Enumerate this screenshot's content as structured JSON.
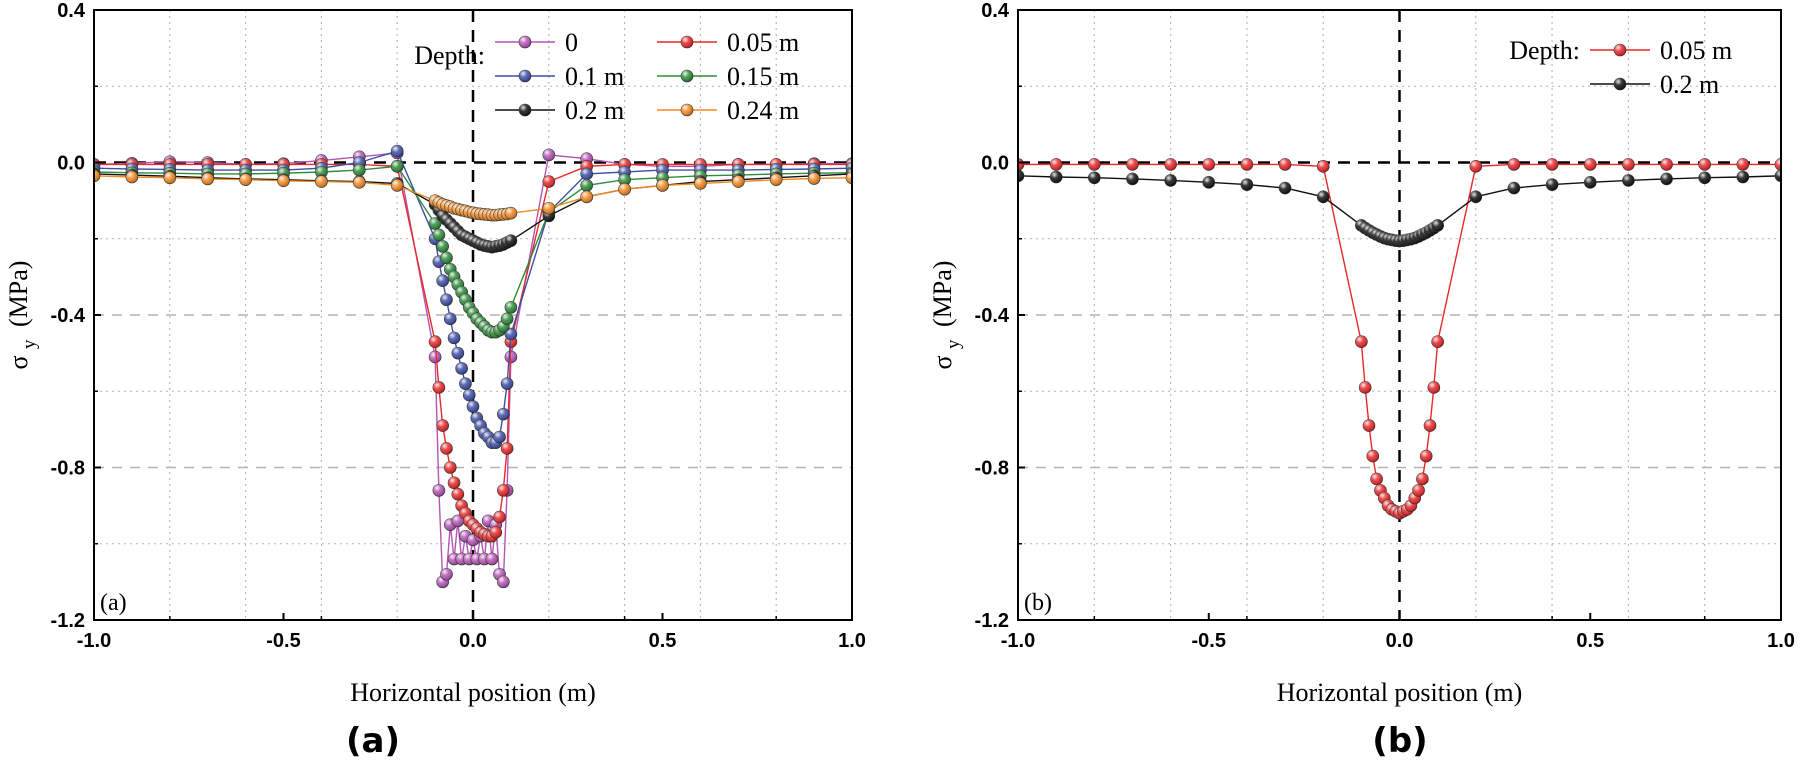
{
  "chart_data": [
    {
      "type": "line",
      "panel_tag": "(a)",
      "caption": "(a)",
      "xlabel": "Horizontal position (m)",
      "ylabel_symbol": "σ",
      "ylabel_sub": "y",
      "ylabel_unit": "(MPa)",
      "xlim": [
        -1.0,
        1.0
      ],
      "ylim": [
        -1.2,
        0.4
      ],
      "xticks": [
        "-1.0",
        "-0.5",
        "0.0",
        "0.5",
        "1.0"
      ],
      "yticks": [
        "0.4",
        "0.0",
        "-0.4",
        "-0.8",
        "-1.2"
      ],
      "grid": true,
      "legend_title": "Depth:",
      "legend_columns": 2,
      "legend_position": "top-right",
      "series": [
        {
          "name": "0",
          "color": "#b455b4",
          "x": [
            -1.0,
            -0.9,
            -0.8,
            -0.7,
            -0.6,
            -0.5,
            -0.4,
            -0.3,
            -0.2,
            -0.1,
            -0.09,
            -0.08,
            -0.07,
            -0.06,
            -0.05,
            -0.04,
            -0.03,
            -0.02,
            -0.01,
            0,
            0.01,
            0.02,
            0.03,
            0.04,
            0.05,
            0.06,
            0.07,
            0.08,
            0.09,
            0.1,
            0.2,
            0.3,
            0.4,
            0.5,
            0.6,
            0.7,
            0.8,
            0.9,
            1.0
          ],
          "y": [
            -0.005,
            -0.002,
            0.002,
            0.0,
            -0.005,
            -0.003,
            0.005,
            0.015,
            0.025,
            -0.51,
            -0.86,
            -1.1,
            -1.08,
            -0.95,
            -1.04,
            -0.94,
            -1.04,
            -0.98,
            -1.04,
            -0.99,
            -1.04,
            -0.98,
            -1.04,
            -0.94,
            -1.04,
            -0.95,
            -1.08,
            -1.1,
            -0.86,
            -0.51,
            0.02,
            0.01,
            -0.005,
            -0.01,
            -0.01,
            -0.005,
            -0.005,
            -0.003,
            -0.003
          ]
        },
        {
          "name": "0.05 m",
          "color": "#e8282a",
          "x": [
            -1.0,
            -0.9,
            -0.8,
            -0.7,
            -0.6,
            -0.5,
            -0.4,
            -0.3,
            -0.2,
            -0.1,
            -0.09,
            -0.08,
            -0.07,
            -0.06,
            -0.05,
            -0.04,
            -0.03,
            -0.02,
            -0.01,
            0,
            0.01,
            0.02,
            0.03,
            0.04,
            0.05,
            0.06,
            0.07,
            0.08,
            0.09,
            0.1,
            0.2,
            0.3,
            0.4,
            0.5,
            0.6,
            0.7,
            0.8,
            0.9,
            1.0
          ],
          "y": [
            -0.005,
            -0.005,
            -0.005,
            -0.005,
            -0.005,
            -0.005,
            -0.005,
            -0.005,
            -0.01,
            -0.47,
            -0.59,
            -0.69,
            -0.75,
            -0.8,
            -0.84,
            -0.87,
            -0.9,
            -0.92,
            -0.94,
            -0.95,
            -0.96,
            -0.97,
            -0.975,
            -0.98,
            -0.98,
            -0.97,
            -0.93,
            -0.86,
            -0.75,
            -0.47,
            -0.05,
            -0.01,
            -0.005,
            -0.005,
            -0.005,
            -0.005,
            -0.005,
            -0.005,
            -0.005
          ]
        },
        {
          "name": "0.1 m",
          "color": "#3e4fa6",
          "x": [
            -1.0,
            -0.9,
            -0.8,
            -0.7,
            -0.6,
            -0.5,
            -0.4,
            -0.3,
            -0.2,
            -0.1,
            -0.09,
            -0.08,
            -0.07,
            -0.06,
            -0.05,
            -0.04,
            -0.03,
            -0.02,
            -0.01,
            0,
            0.01,
            0.02,
            0.03,
            0.04,
            0.05,
            0.06,
            0.07,
            0.08,
            0.09,
            0.1,
            0.2,
            0.3,
            0.4,
            0.5,
            0.6,
            0.7,
            0.8,
            0.9,
            1.0
          ],
          "y": [
            -0.015,
            -0.017,
            -0.018,
            -0.02,
            -0.02,
            -0.02,
            -0.015,
            0.0,
            0.03,
            -0.2,
            -0.26,
            -0.31,
            -0.36,
            -0.41,
            -0.46,
            -0.5,
            -0.54,
            -0.58,
            -0.61,
            -0.64,
            -0.67,
            -0.69,
            -0.71,
            -0.72,
            -0.735,
            -0.735,
            -0.72,
            -0.66,
            -0.58,
            -0.45,
            -0.13,
            -0.03,
            -0.025,
            -0.02,
            -0.02,
            -0.02,
            -0.018,
            -0.017,
            -0.015
          ]
        },
        {
          "name": "0.15 m",
          "color": "#2e8b3a",
          "x": [
            -1.0,
            -0.9,
            -0.8,
            -0.7,
            -0.6,
            -0.5,
            -0.4,
            -0.3,
            -0.2,
            -0.1,
            -0.09,
            -0.08,
            -0.07,
            -0.06,
            -0.05,
            -0.04,
            -0.03,
            -0.02,
            -0.01,
            0,
            0.01,
            0.02,
            0.03,
            0.04,
            0.05,
            0.06,
            0.07,
            0.08,
            0.09,
            0.1,
            0.2,
            0.3,
            0.4,
            0.5,
            0.6,
            0.7,
            0.8,
            0.9,
            1.0
          ],
          "y": [
            -0.025,
            -0.027,
            -0.028,
            -0.03,
            -0.03,
            -0.028,
            -0.025,
            -0.02,
            -0.01,
            -0.16,
            -0.19,
            -0.22,
            -0.25,
            -0.28,
            -0.3,
            -0.32,
            -0.34,
            -0.36,
            -0.38,
            -0.395,
            -0.41,
            -0.42,
            -0.43,
            -0.44,
            -0.445,
            -0.445,
            -0.44,
            -0.43,
            -0.41,
            -0.38,
            -0.13,
            -0.06,
            -0.045,
            -0.04,
            -0.035,
            -0.033,
            -0.03,
            -0.028,
            -0.027
          ]
        },
        {
          "name": "0.2 m",
          "color": "#111111",
          "x": [
            -1.0,
            -0.9,
            -0.8,
            -0.7,
            -0.6,
            -0.5,
            -0.4,
            -0.3,
            -0.2,
            -0.1,
            -0.09,
            -0.08,
            -0.07,
            -0.06,
            -0.05,
            -0.04,
            -0.03,
            -0.02,
            -0.01,
            0,
            0.01,
            0.02,
            0.03,
            0.04,
            0.05,
            0.06,
            0.07,
            0.08,
            0.09,
            0.1,
            0.2,
            0.3,
            0.4,
            0.5,
            0.6,
            0.7,
            0.8,
            0.9,
            1.0
          ],
          "y": [
            -0.03,
            -0.033,
            -0.036,
            -0.04,
            -0.043,
            -0.045,
            -0.048,
            -0.05,
            -0.055,
            -0.11,
            -0.125,
            -0.14,
            -0.15,
            -0.16,
            -0.17,
            -0.18,
            -0.19,
            -0.195,
            -0.2,
            -0.205,
            -0.21,
            -0.215,
            -0.218,
            -0.22,
            -0.222,
            -0.22,
            -0.218,
            -0.215,
            -0.21,
            -0.205,
            -0.14,
            -0.09,
            -0.07,
            -0.06,
            -0.05,
            -0.045,
            -0.04,
            -0.035,
            -0.03
          ]
        },
        {
          "name": "0.24 m",
          "color": "#f08a24",
          "x": [
            -1.0,
            -0.9,
            -0.8,
            -0.7,
            -0.6,
            -0.5,
            -0.4,
            -0.3,
            -0.2,
            -0.1,
            -0.09,
            -0.08,
            -0.07,
            -0.06,
            -0.05,
            -0.04,
            -0.03,
            -0.02,
            -0.01,
            0,
            0.01,
            0.02,
            0.03,
            0.04,
            0.05,
            0.06,
            0.07,
            0.08,
            0.09,
            0.1,
            0.2,
            0.3,
            0.4,
            0.5,
            0.6,
            0.7,
            0.8,
            0.9,
            1.0
          ],
          "y": [
            -0.035,
            -0.038,
            -0.04,
            -0.043,
            -0.045,
            -0.048,
            -0.05,
            -0.052,
            -0.06,
            -0.1,
            -0.105,
            -0.11,
            -0.113,
            -0.116,
            -0.12,
            -0.122,
            -0.125,
            -0.127,
            -0.13,
            -0.132,
            -0.134,
            -0.135,
            -0.136,
            -0.137,
            -0.138,
            -0.138,
            -0.137,
            -0.136,
            -0.135,
            -0.133,
            -0.12,
            -0.09,
            -0.07,
            -0.06,
            -0.055,
            -0.05,
            -0.045,
            -0.042,
            -0.04
          ]
        }
      ]
    },
    {
      "type": "line",
      "panel_tag": "(b)",
      "caption": "(b)",
      "xlabel": "Horizontal position (m)",
      "ylabel_symbol": "σ",
      "ylabel_sub": "y",
      "ylabel_unit": "(MPa)",
      "xlim": [
        -1.0,
        1.0
      ],
      "ylim": [
        -1.2,
        0.4
      ],
      "xticks": [
        "-1.0",
        "-0.5",
        "0.0",
        "0.5",
        "1.0"
      ],
      "yticks": [
        "0.4",
        "0.0",
        "-0.4",
        "-0.8",
        "-1.2"
      ],
      "grid": true,
      "legend_title": "Depth:",
      "legend_columns": 1,
      "legend_position": "top-right",
      "series": [
        {
          "name": "0.05 m",
          "color": "#e8282a",
          "x": [
            -1.0,
            -0.9,
            -0.8,
            -0.7,
            -0.6,
            -0.5,
            -0.4,
            -0.3,
            -0.2,
            -0.1,
            -0.09,
            -0.08,
            -0.07,
            -0.06,
            -0.05,
            -0.04,
            -0.03,
            -0.02,
            -0.01,
            0,
            0.01,
            0.02,
            0.03,
            0.04,
            0.05,
            0.06,
            0.07,
            0.08,
            0.09,
            0.1,
            0.2,
            0.3,
            0.4,
            0.5,
            0.6,
            0.7,
            0.8,
            0.9,
            1.0
          ],
          "y": [
            -0.005,
            -0.005,
            -0.005,
            -0.005,
            -0.005,
            -0.005,
            -0.005,
            -0.005,
            -0.01,
            -0.47,
            -0.59,
            -0.69,
            -0.77,
            -0.83,
            -0.86,
            -0.88,
            -0.9,
            -0.91,
            -0.915,
            -0.92,
            -0.915,
            -0.91,
            -0.9,
            -0.88,
            -0.86,
            -0.83,
            -0.77,
            -0.69,
            -0.59,
            -0.47,
            -0.01,
            -0.005,
            -0.005,
            -0.005,
            -0.005,
            -0.005,
            -0.005,
            -0.005,
            -0.005
          ]
        },
        {
          "name": "0.2 m",
          "color": "#111111",
          "x": [
            -1.0,
            -0.9,
            -0.8,
            -0.7,
            -0.6,
            -0.5,
            -0.4,
            -0.3,
            -0.2,
            -0.1,
            -0.09,
            -0.08,
            -0.07,
            -0.06,
            -0.05,
            -0.04,
            -0.03,
            -0.02,
            -0.01,
            0,
            0.01,
            0.02,
            0.03,
            0.04,
            0.05,
            0.06,
            0.07,
            0.08,
            0.09,
            0.1,
            0.2,
            0.3,
            0.4,
            0.5,
            0.6,
            0.7,
            0.8,
            0.9,
            1.0
          ],
          "y": [
            -0.035,
            -0.038,
            -0.04,
            -0.043,
            -0.047,
            -0.052,
            -0.058,
            -0.067,
            -0.09,
            -0.165,
            -0.172,
            -0.178,
            -0.184,
            -0.189,
            -0.194,
            -0.198,
            -0.201,
            -0.203,
            -0.205,
            -0.206,
            -0.205,
            -0.203,
            -0.201,
            -0.198,
            -0.194,
            -0.189,
            -0.184,
            -0.178,
            -0.172,
            -0.165,
            -0.09,
            -0.067,
            -0.058,
            -0.052,
            -0.047,
            -0.043,
            -0.04,
            -0.038,
            -0.035
          ]
        }
      ]
    }
  ]
}
